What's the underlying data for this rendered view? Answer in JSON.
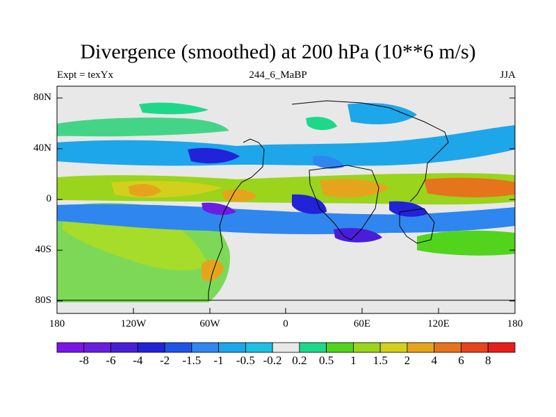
{
  "title": "Divergence (smoothed) at 200 hPa (10**6 m/s)",
  "subtitle_left": "Expt = texYx",
  "subtitle_center": "244_6_MaBP",
  "subtitle_right": "JJA",
  "lat_labels": [
    "80N",
    "40N",
    "0",
    "40S",
    "80S"
  ],
  "lon_labels": [
    "180",
    "120W",
    "60W",
    "0",
    "60E",
    "120E",
    "180"
  ],
  "colorbar_labels": [
    "-8",
    "-6",
    "-4",
    "-2",
    "-1.5",
    "-1",
    "-0.5",
    "-0.2",
    "0.2",
    "0.5",
    "1",
    "1.5",
    "2",
    "4",
    "6",
    "8"
  ],
  "colorbar_colors": [
    "#7a16e6",
    "#6a1ee0",
    "#4a1ed8",
    "#2222d8",
    "#1f55e6",
    "#2f86ee",
    "#1ea6ea",
    "#1cc0e4",
    "#e8e8e8",
    "#1ed88a",
    "#52d41c",
    "#9ad41c",
    "#d2d01c",
    "#e6a41c",
    "#e6741c",
    "#e6441c",
    "#e61e1e"
  ],
  "map": {
    "projection": "cylindrical-equidistant",
    "lat_range": [
      -90,
      90
    ],
    "lon_range": [
      -180,
      180
    ],
    "background": "#e8e8e8",
    "coastlines": "coarse-grid"
  }
}
